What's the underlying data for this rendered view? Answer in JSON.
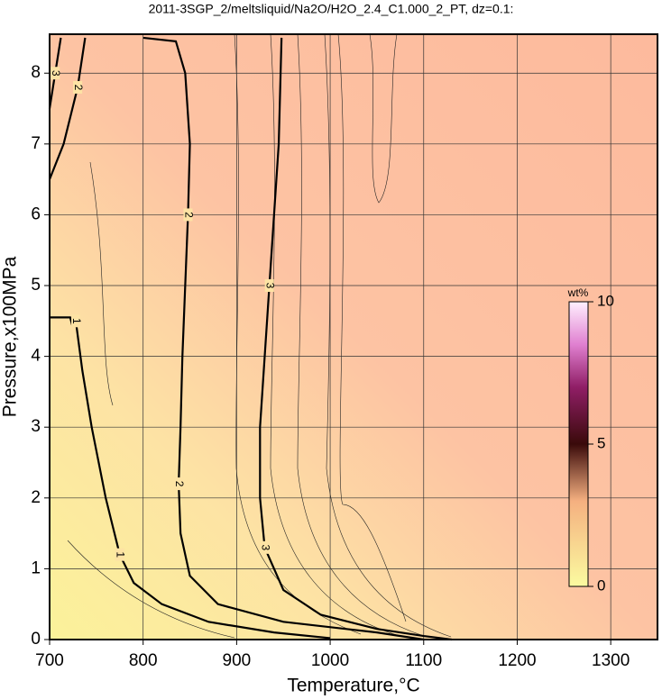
{
  "chart_data": {
    "type": "contour",
    "title": "2011-3SGP_2/meltsliquid/Na2O/H2O_2.4_C1.000_2_PT, dz=0.1:",
    "x_label": "Temperature,°C",
    "y_label": "Pressure,x100MPa",
    "xlim": [
      700,
      1350
    ],
    "ylim": [
      0,
      8.55
    ],
    "xticks": [
      700,
      800,
      900,
      1000,
      1100,
      1200,
      1300
    ],
    "yticks": [
      0,
      1,
      2,
      3,
      4,
      5,
      6,
      7,
      8
    ],
    "grid": true,
    "contours": [
      {
        "level": 1,
        "x": [
          700,
          722,
          724,
          728,
          735,
          745,
          760,
          775,
          790,
          820,
          870,
          940,
          1000
        ],
        "y": [
          4.55,
          4.55,
          4.45,
          4.5,
          3.8,
          3.0,
          2.0,
          1.2,
          0.8,
          0.5,
          0.25,
          0.1,
          0.02
        ]
      },
      {
        "level": 2,
        "x": [
          800,
          835,
          845,
          850,
          848,
          845,
          842,
          840,
          838,
          840,
          850,
          880,
          950,
          1050,
          1100
        ],
        "y": [
          8.5,
          8.45,
          8.0,
          7.0,
          6.0,
          5.0,
          4.0,
          3.0,
          2.2,
          1.5,
          0.9,
          0.5,
          0.25,
          0.1,
          0
        ]
      },
      {
        "level": 2,
        "x": [
          700,
          715,
          730,
          738
        ],
        "y": [
          6.5,
          7.0,
          7.8,
          8.5
        ]
      },
      {
        "level": 3,
        "x": [
          948,
          945,
          940,
          935,
          930,
          925,
          925,
          930,
          950,
          990,
          1050,
          1100,
          1130
        ],
        "y": [
          8.5,
          7.0,
          6.0,
          5.0,
          4.0,
          3.0,
          2.0,
          1.3,
          0.7,
          0.35,
          0.15,
          0.05,
          0
        ]
      },
      {
        "level": 3,
        "x": [
          700,
          706,
          712
        ],
        "y": [
          7.5,
          8.0,
          8.5
        ]
      }
    ],
    "colorbar": {
      "label": "wt%",
      "lim": [
        0,
        10
      ],
      "ticks": [
        0,
        5,
        10
      ]
    }
  }
}
